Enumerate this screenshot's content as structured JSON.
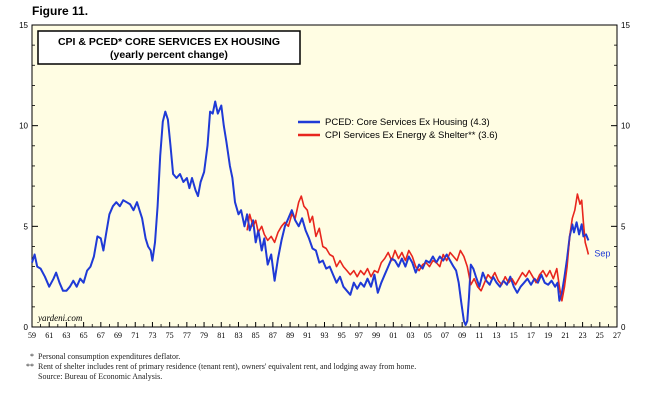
{
  "figure_label": "Figure 11.",
  "footnotes": [
    {
      "mark": "*",
      "text": "Personal consumption expenditures deflator."
    },
    {
      "mark": "**",
      "text": "Rent of shelter includes rent of primary residence (tenant rent), owners' equivalent rent, and lodging away from home."
    },
    {
      "mark": "",
      "text": "Source: Bureau of Economic Analysis."
    }
  ],
  "colors": {
    "plot_bg": "#fffde3",
    "pced": "#1f3ad6",
    "cpi": "#e8261d"
  },
  "chart_data": {
    "type": "line",
    "title": "CPI & PCED* CORE SERVICES EX HOUSING",
    "subtitle": "(yearly percent change)",
    "watermark": "yardeni.com",
    "end_label": "Sep",
    "grid": false,
    "legend_position": "top-right",
    "xlim": [
      1959,
      2027
    ],
    "ylim": [
      0,
      15
    ],
    "x_ticks": [
      "59",
      "61",
      "63",
      "65",
      "67",
      "69",
      "71",
      "73",
      "75",
      "77",
      "79",
      "81",
      "83",
      "85",
      "87",
      "89",
      "91",
      "93",
      "95",
      "97",
      "99",
      "01",
      "03",
      "05",
      "07",
      "09",
      "11",
      "13",
      "15",
      "17",
      "19",
      "21",
      "23",
      "25",
      "27"
    ],
    "y_ticks": [
      "0",
      "5",
      "10",
      "15"
    ],
    "series": [
      {
        "name": "PCED: Core Services Ex Housing  (4.3)",
        "color": "#1f3ad6",
        "points": [
          [
            1959.0,
            3.2
          ],
          [
            1959.3,
            3.6
          ],
          [
            1959.6,
            3.0
          ],
          [
            1960.0,
            2.9
          ],
          [
            1960.5,
            2.5
          ],
          [
            1961.0,
            2.0
          ],
          [
            1961.5,
            2.4
          ],
          [
            1961.8,
            2.7
          ],
          [
            1962.2,
            2.2
          ],
          [
            1962.6,
            1.8
          ],
          [
            1963.0,
            1.8
          ],
          [
            1963.4,
            2.0
          ],
          [
            1963.8,
            2.3
          ],
          [
            1964.2,
            2.0
          ],
          [
            1964.6,
            2.4
          ],
          [
            1965.0,
            2.2
          ],
          [
            1965.4,
            2.8
          ],
          [
            1965.8,
            3.0
          ],
          [
            1966.2,
            3.5
          ],
          [
            1966.6,
            4.5
          ],
          [
            1967.0,
            4.4
          ],
          [
            1967.3,
            3.8
          ],
          [
            1967.6,
            4.6
          ],
          [
            1968.0,
            5.6
          ],
          [
            1968.4,
            6.0
          ],
          [
            1968.8,
            6.2
          ],
          [
            1969.2,
            6.0
          ],
          [
            1969.6,
            6.3
          ],
          [
            1970.0,
            6.2
          ],
          [
            1970.4,
            6.1
          ],
          [
            1970.8,
            5.8
          ],
          [
            1971.2,
            6.2
          ],
          [
            1971.5,
            5.8
          ],
          [
            1971.8,
            5.4
          ],
          [
            1972.2,
            4.4
          ],
          [
            1972.5,
            4.0
          ],
          [
            1972.8,
            3.8
          ],
          [
            1973.0,
            3.3
          ],
          [
            1973.3,
            4.2
          ],
          [
            1973.6,
            6.0
          ],
          [
            1973.9,
            8.5
          ],
          [
            1974.2,
            10.2
          ],
          [
            1974.5,
            10.7
          ],
          [
            1974.8,
            10.3
          ],
          [
            1975.1,
            9.0
          ],
          [
            1975.4,
            7.6
          ],
          [
            1975.8,
            7.4
          ],
          [
            1976.2,
            7.6
          ],
          [
            1976.6,
            7.2
          ],
          [
            1977.0,
            7.4
          ],
          [
            1977.3,
            6.9
          ],
          [
            1977.6,
            7.4
          ],
          [
            1978.0,
            6.8
          ],
          [
            1978.3,
            6.5
          ],
          [
            1978.6,
            7.2
          ],
          [
            1979.0,
            7.7
          ],
          [
            1979.4,
            9.0
          ],
          [
            1979.7,
            10.7
          ],
          [
            1980.0,
            10.6
          ],
          [
            1980.3,
            11.2
          ],
          [
            1980.6,
            10.6
          ],
          [
            1981.0,
            11.0
          ],
          [
            1981.3,
            10.0
          ],
          [
            1981.6,
            9.2
          ],
          [
            1982.0,
            8.0
          ],
          [
            1982.3,
            7.4
          ],
          [
            1982.6,
            6.2
          ],
          [
            1983.0,
            5.6
          ],
          [
            1983.3,
            5.8
          ],
          [
            1983.7,
            5.0
          ],
          [
            1984.0,
            5.6
          ],
          [
            1984.3,
            4.8
          ],
          [
            1984.7,
            5.3
          ],
          [
            1985.0,
            4.2
          ],
          [
            1985.3,
            4.8
          ],
          [
            1985.7,
            3.8
          ],
          [
            1986.0,
            4.4
          ],
          [
            1986.4,
            3.1
          ],
          [
            1986.8,
            3.6
          ],
          [
            1987.2,
            2.3
          ],
          [
            1987.6,
            3.4
          ],
          [
            1988.0,
            4.3
          ],
          [
            1988.4,
            5.0
          ],
          [
            1988.8,
            5.4
          ],
          [
            1989.2,
            5.8
          ],
          [
            1989.6,
            5.3
          ],
          [
            1990.0,
            5.0
          ],
          [
            1990.4,
            5.4
          ],
          [
            1990.8,
            4.8
          ],
          [
            1991.2,
            4.4
          ],
          [
            1991.6,
            3.9
          ],
          [
            1992.0,
            3.8
          ],
          [
            1992.4,
            3.2
          ],
          [
            1992.8,
            3.3
          ],
          [
            1993.2,
            2.9
          ],
          [
            1993.6,
            3.0
          ],
          [
            1994.0,
            2.6
          ],
          [
            1994.4,
            2.2
          ],
          [
            1994.8,
            2.5
          ],
          [
            1995.2,
            2.0
          ],
          [
            1995.6,
            1.8
          ],
          [
            1996.0,
            1.6
          ],
          [
            1996.4,
            2.2
          ],
          [
            1996.8,
            1.9
          ],
          [
            1997.2,
            2.2
          ],
          [
            1997.6,
            2.0
          ],
          [
            1998.0,
            2.4
          ],
          [
            1998.4,
            2.0
          ],
          [
            1998.8,
            2.6
          ],
          [
            1999.2,
            1.7
          ],
          [
            1999.6,
            2.2
          ],
          [
            2000.0,
            2.6
          ],
          [
            2000.4,
            3.0
          ],
          [
            2000.8,
            3.4
          ],
          [
            2001.2,
            3.3
          ],
          [
            2001.6,
            3.0
          ],
          [
            2002.0,
            3.4
          ],
          [
            2002.4,
            3.0
          ],
          [
            2002.8,
            3.5
          ],
          [
            2003.2,
            3.2
          ],
          [
            2003.6,
            2.7
          ],
          [
            2004.0,
            3.1
          ],
          [
            2004.4,
            2.9
          ],
          [
            2004.8,
            3.3
          ],
          [
            2005.2,
            3.2
          ],
          [
            2005.6,
            3.5
          ],
          [
            2006.0,
            3.2
          ],
          [
            2006.4,
            3.5
          ],
          [
            2006.8,
            3.3
          ],
          [
            2007.2,
            3.6
          ],
          [
            2007.6,
            3.3
          ],
          [
            2008.0,
            3.0
          ],
          [
            2008.3,
            2.8
          ],
          [
            2008.6,
            2.2
          ],
          [
            2008.9,
            1.2
          ],
          [
            2009.2,
            0.3
          ],
          [
            2009.4,
            0.1
          ],
          [
            2009.6,
            0.3
          ],
          [
            2009.8,
            1.5
          ],
          [
            2010.0,
            3.1
          ],
          [
            2010.3,
            2.9
          ],
          [
            2010.6,
            2.5
          ],
          [
            2011.0,
            2.0
          ],
          [
            2011.4,
            2.7
          ],
          [
            2011.8,
            2.3
          ],
          [
            2012.2,
            2.1
          ],
          [
            2012.6,
            2.5
          ],
          [
            2013.0,
            2.2
          ],
          [
            2013.4,
            2.0
          ],
          [
            2013.8,
            2.3
          ],
          [
            2014.2,
            2.1
          ],
          [
            2014.6,
            2.5
          ],
          [
            2015.0,
            2.0
          ],
          [
            2015.4,
            1.7
          ],
          [
            2015.8,
            2.0
          ],
          [
            2016.2,
            2.2
          ],
          [
            2016.6,
            2.4
          ],
          [
            2017.0,
            2.1
          ],
          [
            2017.4,
            2.4
          ],
          [
            2017.8,
            2.2
          ],
          [
            2018.2,
            2.6
          ],
          [
            2018.6,
            2.2
          ],
          [
            2019.0,
            2.1
          ],
          [
            2019.4,
            2.3
          ],
          [
            2019.8,
            2.0
          ],
          [
            2020.1,
            2.2
          ],
          [
            2020.3,
            1.3
          ],
          [
            2020.6,
            1.7
          ],
          [
            2020.9,
            2.5
          ],
          [
            2021.2,
            3.4
          ],
          [
            2021.5,
            4.5
          ],
          [
            2021.8,
            5.1
          ],
          [
            2022.0,
            4.7
          ],
          [
            2022.3,
            5.2
          ],
          [
            2022.6,
            4.6
          ],
          [
            2022.9,
            5.1
          ],
          [
            2023.1,
            4.5
          ],
          [
            2023.4,
            4.6
          ],
          [
            2023.67,
            4.3
          ]
        ]
      },
      {
        "name": "CPI Services Ex Energy & Shelter** (3.6)",
        "color": "#e8261d",
        "points": [
          [
            1984.0,
            4.8
          ],
          [
            1984.3,
            5.6
          ],
          [
            1984.7,
            5.0
          ],
          [
            1985.0,
            5.3
          ],
          [
            1985.3,
            4.7
          ],
          [
            1985.7,
            5.0
          ],
          [
            1986.0,
            4.6
          ],
          [
            1986.4,
            4.3
          ],
          [
            1986.8,
            4.5
          ],
          [
            1987.2,
            4.2
          ],
          [
            1987.6,
            4.7
          ],
          [
            1988.0,
            5.0
          ],
          [
            1988.4,
            5.2
          ],
          [
            1988.8,
            5.0
          ],
          [
            1989.2,
            5.6
          ],
          [
            1989.6,
            5.4
          ],
          [
            1990.0,
            6.2
          ],
          [
            1990.3,
            6.5
          ],
          [
            1990.6,
            6.0
          ],
          [
            1991.0,
            5.8
          ],
          [
            1991.3,
            5.2
          ],
          [
            1991.6,
            5.5
          ],
          [
            1992.0,
            4.5
          ],
          [
            1992.4,
            4.9
          ],
          [
            1992.8,
            4.0
          ],
          [
            1993.2,
            3.9
          ],
          [
            1993.6,
            3.6
          ],
          [
            1994.0,
            3.5
          ],
          [
            1994.4,
            3.0
          ],
          [
            1994.8,
            3.3
          ],
          [
            1995.2,
            3.0
          ],
          [
            1995.6,
            2.8
          ],
          [
            1996.0,
            2.6
          ],
          [
            1996.4,
            2.8
          ],
          [
            1996.8,
            2.5
          ],
          [
            1997.2,
            2.8
          ],
          [
            1997.6,
            2.6
          ],
          [
            1998.0,
            2.9
          ],
          [
            1998.4,
            2.5
          ],
          [
            1998.8,
            2.8
          ],
          [
            1999.2,
            2.7
          ],
          [
            1999.6,
            3.2
          ],
          [
            2000.0,
            3.4
          ],
          [
            2000.4,
            3.7
          ],
          [
            2000.8,
            3.3
          ],
          [
            2001.2,
            3.8
          ],
          [
            2001.6,
            3.4
          ],
          [
            2002.0,
            3.7
          ],
          [
            2002.4,
            3.3
          ],
          [
            2002.8,
            3.8
          ],
          [
            2003.2,
            3.5
          ],
          [
            2003.6,
            3.0
          ],
          [
            2004.0,
            2.8
          ],
          [
            2004.4,
            3.1
          ],
          [
            2004.8,
            3.2
          ],
          [
            2005.2,
            3.0
          ],
          [
            2005.6,
            3.3
          ],
          [
            2006.0,
            3.2
          ],
          [
            2006.4,
            3.0
          ],
          [
            2006.8,
            3.6
          ],
          [
            2007.2,
            3.3
          ],
          [
            2007.6,
            3.7
          ],
          [
            2008.0,
            3.5
          ],
          [
            2008.4,
            3.3
          ],
          [
            2008.8,
            3.8
          ],
          [
            2009.2,
            3.5
          ],
          [
            2009.6,
            3.0
          ],
          [
            2010.0,
            2.1
          ],
          [
            2010.4,
            2.4
          ],
          [
            2010.8,
            2.0
          ],
          [
            2011.2,
            1.8
          ],
          [
            2011.6,
            2.2
          ],
          [
            2012.0,
            2.6
          ],
          [
            2012.4,
            2.4
          ],
          [
            2012.8,
            2.7
          ],
          [
            2013.2,
            2.3
          ],
          [
            2013.6,
            2.1
          ],
          [
            2014.0,
            2.5
          ],
          [
            2014.4,
            2.2
          ],
          [
            2014.8,
            2.4
          ],
          [
            2015.2,
            2.1
          ],
          [
            2015.6,
            2.4
          ],
          [
            2016.0,
            2.7
          ],
          [
            2016.4,
            2.5
          ],
          [
            2016.8,
            2.8
          ],
          [
            2017.2,
            2.5
          ],
          [
            2017.6,
            2.2
          ],
          [
            2018.0,
            2.6
          ],
          [
            2018.4,
            2.8
          ],
          [
            2018.8,
            2.5
          ],
          [
            2019.2,
            2.8
          ],
          [
            2019.6,
            2.4
          ],
          [
            2020.0,
            2.9
          ],
          [
            2020.3,
            2.0
          ],
          [
            2020.6,
            1.3
          ],
          [
            2020.9,
            2.0
          ],
          [
            2021.2,
            3.0
          ],
          [
            2021.5,
            4.5
          ],
          [
            2021.8,
            5.4
          ],
          [
            2022.1,
            5.8
          ],
          [
            2022.4,
            6.6
          ],
          [
            2022.7,
            6.1
          ],
          [
            2022.9,
            6.3
          ],
          [
            2023.1,
            5.2
          ],
          [
            2023.3,
            4.2
          ],
          [
            2023.5,
            3.9
          ],
          [
            2023.67,
            3.6
          ]
        ]
      }
    ]
  }
}
